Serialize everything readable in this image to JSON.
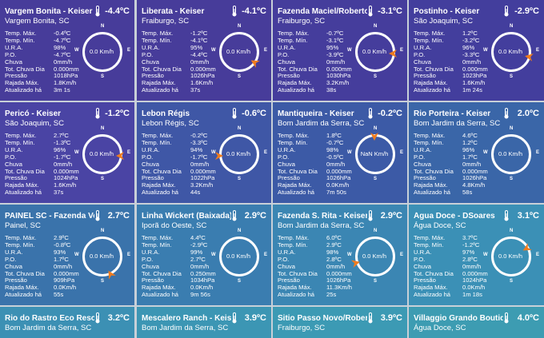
{
  "labels": {
    "temp_max": "Temp. Máx.",
    "temp_min": "Temp. Mín.",
    "ura": "U.R.A.",
    "po": "P.O.",
    "chuva": "Chuva",
    "tot_chuva": "Tot. Chuva Dia",
    "pressao": "Pressão",
    "rajada": "Rajada Máx.",
    "atualizado": "Atualizado há"
  },
  "compass_dirs": {
    "n": "N",
    "s": "S",
    "w": "W",
    "e": "E"
  },
  "icons": {
    "thermometer": "thermometer-icon",
    "compass": "wind-compass-icon"
  },
  "stations": [
    {
      "name": "Vargem Bonita - Keiser",
      "city": "Vargem Bonita, SC",
      "temp": "-4.4ºC",
      "temp_max": "-0.4ºC",
      "temp_min": "-4.7ºC",
      "ura": "98%",
      "po": "-4.7ºC",
      "chuva": "0mm/h",
      "tot_chuva": "0.000mm",
      "pressao": "1018hPa",
      "rajada": "1.8Km/h",
      "atualizado": "3m 1s",
      "wind": "0.0 Km/h",
      "arrow_deg": null,
      "color": "#473c9a"
    },
    {
      "name": "Liberata - Keiser",
      "city": "Fraiburgo, SC",
      "temp": "-4.1ºC",
      "temp_max": "-1.2ºC",
      "temp_min": "-4.1ºC",
      "ura": "95%",
      "po": "-4.4ºC",
      "chuva": "0mm/h",
      "tot_chuva": "0.000mm",
      "pressao": "1026hPa",
      "rajada": "1.6Km/h",
      "atualizado": "37s",
      "wind": "0.0 Km/h",
      "arrow_deg": 120,
      "color": "#473c9a"
    },
    {
      "name": "Fazenda Maciel/Roberto",
      "city": "Fraiburgo, SC",
      "temp": "-3.1ºC",
      "temp_max": "-0.7ºC",
      "temp_min": "-3.1ºC",
      "ura": "95%",
      "po": "-3.9ºC",
      "chuva": "0mm/h",
      "tot_chuva": "0.000mm",
      "pressao": "1030hPa",
      "rajada": "3.2Km/h",
      "atualizado": "38s",
      "wind": "0.0 Km/h",
      "arrow_deg": 90,
      "color": "#453d9c"
    },
    {
      "name": "Postinho - Keiser",
      "city": "São Joaquim, SC",
      "temp": "-2.9ºC",
      "temp_max": "1.2ºC",
      "temp_min": "-3.2ºC",
      "ura": "96%",
      "po": "-3.3ºC",
      "chuva": "0mm/h",
      "tot_chuva": "0.000mm",
      "pressao": "1023hPa",
      "rajada": "1.6Km/h",
      "atualizado": "1m 24s",
      "wind": "0.0 Km/h",
      "arrow_deg": 100,
      "color": "#433e9d"
    },
    {
      "name": "Pericó - Keiser",
      "city": "São Joaquim, SC",
      "temp": "-1.2ºC",
      "temp_max": "2.7ºC",
      "temp_min": "-1.3ºC",
      "ura": "96%",
      "po": "-1.7ºC",
      "chuva": "0mm/h",
      "tot_chuva": "0.000mm",
      "pressao": "1024hPa",
      "rajada": "1.6Km/h",
      "atualizado": "37s",
      "wind": "0.0 Km/h",
      "arrow_deg": 90,
      "color": "#4a44a4"
    },
    {
      "name": "Lebon Régis",
      "city": "Lebon Régis, SC",
      "temp": "-0.6ºC",
      "temp_max": "-0.2ºC",
      "temp_min": "-3.3ºC",
      "ura": "94%",
      "po": "-1.7ºC",
      "chuva": "0mm/h",
      "tot_chuva": "0.000mm",
      "pressao": "1022hPa",
      "rajada": "3.2Km/h",
      "atualizado": "44s",
      "wind": "0.0 Km/h",
      "arrow_deg": 270,
      "color": "#3f57a6"
    },
    {
      "name": "Mantiqueira - Keiser",
      "city": "Bom Jardim da Serra, SC",
      "temp": "-0.2ºC",
      "temp_max": "1.8ºC",
      "temp_min": "-0.7ºC",
      "ura": "98%",
      "po": "-0.5ºC",
      "chuva": "0mm/h",
      "tot_chuva": "0.000mm",
      "pressao": "1026hPa",
      "rajada": "0.0Km/h",
      "atualizado": "7m 50s",
      "wind": "NaN Km/h",
      "arrow_deg": 0,
      "color": "#3c5aa6"
    },
    {
      "name": "Rio Porteira - Keiser",
      "city": "Bom Jardim da Serra, SC",
      "temp": "2.0ºC",
      "temp_max": "4.6ºC",
      "temp_min": "1.2ºC",
      "ura": "96%",
      "po": "1.7ºC",
      "chuva": "0mm/h",
      "tot_chuva": "0.000mm",
      "pressao": "1026hPa",
      "rajada": "4.8Km/h",
      "atualizado": "58s",
      "wind": "0.0 Km/h",
      "arrow_deg": null,
      "color": "#3a66a8"
    },
    {
      "name": "PAINEL SC - Fazenda Velha",
      "city": "Painel, SC",
      "temp": "2.7ºC",
      "temp_max": "2.9ºC",
      "temp_min": "-0.8ºC",
      "ura": "93%",
      "po": "1.7ºC",
      "chuva": "0mm/h",
      "tot_chuva": "0.000mm",
      "pressao": "909hPa",
      "rajada": "0.0Km/h",
      "atualizado": "55s",
      "wind": "0.0 Km/h",
      "arrow_deg": 150,
      "color": "#3a73ab"
    },
    {
      "name": "Linha Wickert (Baixada) -",
      "city": "Iporã do Oeste, SC",
      "temp": "2.9ºC",
      "temp_max": "4.4ºC",
      "temp_min": "-2.9ºC",
      "ura": "99%",
      "po": "2.7ºC",
      "chuva": "0mm/h",
      "tot_chuva": "0.250mm",
      "pressao": "1034hPa",
      "rajada": "0.0Km/h",
      "atualizado": "9m 56s",
      "wind": "0.0 Km/h",
      "arrow_deg": null,
      "color": "#3a7db0"
    },
    {
      "name": "Fazenda S. Rita - Keiser",
      "city": "Bom Jardim da Serra, SC",
      "temp": "2.9ºC",
      "temp_max": "6.0ºC",
      "temp_min": "2.9ºC",
      "ura": "98%",
      "po": "2.8ºC",
      "chuva": "0mm/h",
      "tot_chuva": "0.000mm",
      "pressao": "1026hPa",
      "rajada": "11.3Km/h",
      "atualizado": "25s",
      "wind": "0.0 Km/h",
      "arrow_deg": 255,
      "color": "#3b86b3"
    },
    {
      "name": "Água Doce - DSoares",
      "city": "Água Doce, SC",
      "temp": "3.1ºC",
      "temp_max": "3.7ºC",
      "temp_min": "-1.2ºC",
      "ura": "97%",
      "po": "2.8ºC",
      "chuva": "0mm/h",
      "tot_chuva": "0.000mm",
      "pressao": "1024hPa",
      "rajada": "0.0Km/h",
      "atualizado": "1m 18s",
      "wind": "0.0 Km/h",
      "arrow_deg": 60,
      "color": "#3b90b6"
    },
    {
      "name": "Rio do Rastro Eco Resort",
      "city": "Bom Jardim da Serra, SC",
      "temp": "3.2ºC",
      "color": "#3c90b4"
    },
    {
      "name": "Mescalero Ranch - Keiser",
      "city": "Bom Jardim da Serra, SC",
      "temp": "3.9ºC",
      "color": "#3c96b4"
    },
    {
      "name": "Sitio Passo Novo/Roberto",
      "city": "Fraiburgo, SC",
      "temp": "3.9ºC",
      "color": "#3c9ab4"
    },
    {
      "name": "Villaggio Grando Boutique",
      "city": "Água Doce, SC",
      "temp": "4.0ºC",
      "color": "#3d9cb2"
    }
  ]
}
